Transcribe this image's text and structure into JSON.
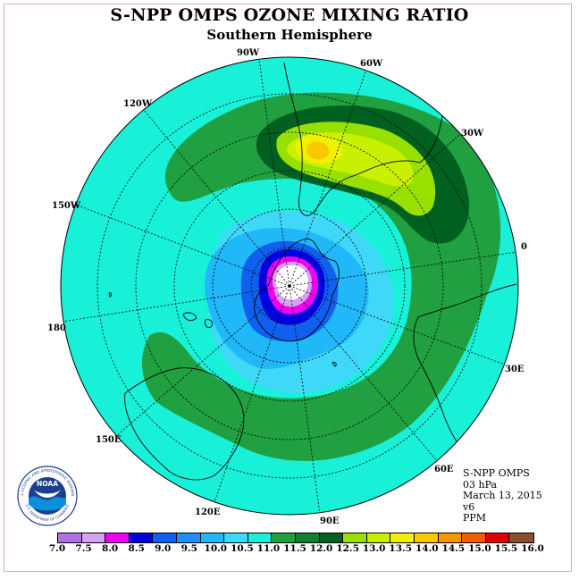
{
  "title": "S-NPP OMPS OZONE MIXING RATIO",
  "subtitle": "Southern Hemisphere",
  "longitude_labels": {
    "lon_90w": "90W",
    "lon_60w": "60W",
    "lon_30w": "30W",
    "lon_120w": "120W",
    "lon_150w": "150W",
    "lon_0": "0",
    "lon_180": "180",
    "lon_30e": "30E",
    "lon_60e": "60E",
    "lon_90e": "90E",
    "lon_120e": "120E",
    "lon_150e": "150E"
  },
  "metadata": {
    "instrument": "S-NPP OMPS",
    "level": "03 hPa",
    "date": "March 13, 2015",
    "version": "v6",
    "units": "PPM"
  },
  "logo": {
    "text": "NOAA",
    "ring_text": "NATIONAL OCEANIC AND ATMOSPHERIC ADMINISTRATION",
    "ring_text_bottom": "U.S. DEPARTMENT OF COMMERCE"
  },
  "colorbar": {
    "labels": [
      "7.0",
      "7.5",
      "8.0",
      "8.5",
      "9.0",
      "9.5",
      "10.0",
      "10.5",
      "11.0",
      "11.5",
      "12.0",
      "12.5",
      "13.0",
      "13.5",
      "14.0",
      "14.5",
      "15.0",
      "15.5",
      "16.0"
    ],
    "colors": [
      "#b070e8",
      "#d8a0f0",
      "#f000f0",
      "#0000e0",
      "#1060f0",
      "#2090f8",
      "#20b8f8",
      "#40d8f8",
      "#18f0d8",
      "#20a040",
      "#108030",
      "#006020",
      "#98e000",
      "#c8f000",
      "#f0f000",
      "#f8c800",
      "#f89800",
      "#f06000",
      "#e00000",
      "#8b5030"
    ]
  },
  "map_colors": {
    "ocean_background": "#18f0d8",
    "green_band": "#20a040",
    "dark_green": "#006020",
    "light_green": "#98e000",
    "yellow_green": "#c8f000",
    "yellow": "#f0f000",
    "orange": "#f8c800",
    "light_blue": "#40d8f8",
    "mid_blue": "#20b8f8",
    "blue": "#1060f0",
    "dark_blue": "#0000e0",
    "magenta": "#f000f0",
    "lilac": "#d8a0f0"
  }
}
